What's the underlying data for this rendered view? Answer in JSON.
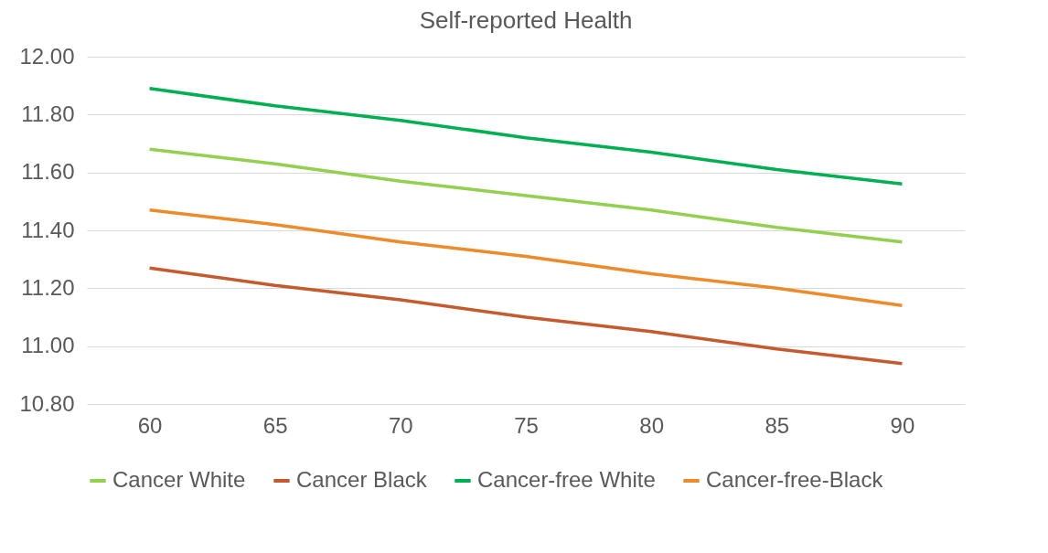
{
  "chart_data": {
    "type": "line",
    "title": "Self-reported Health",
    "categories": [
      "60",
      "65",
      "70",
      "75",
      "80",
      "85",
      "90"
    ],
    "series": [
      {
        "name": "Cancer White",
        "color": "#92d050",
        "values": [
          11.68,
          11.63,
          11.57,
          11.52,
          11.47,
          11.41,
          11.36
        ]
      },
      {
        "name": "Cancer Black",
        "color": "#c55a2e",
        "values": [
          11.27,
          11.21,
          11.16,
          11.1,
          11.05,
          10.99,
          10.94
        ]
      },
      {
        "name": "Cancer-free White",
        "color": "#00b050",
        "values": [
          11.89,
          11.83,
          11.78,
          11.72,
          11.67,
          11.61,
          11.56
        ]
      },
      {
        "name": "Cancer-free-Black",
        "color": "#ed8a2a",
        "values": [
          11.47,
          11.42,
          11.36,
          11.31,
          11.25,
          11.2,
          11.14
        ]
      }
    ],
    "ylim": [
      10.8,
      12.0
    ],
    "yticks": [
      {
        "value": 10.8,
        "label": "10.80"
      },
      {
        "value": 11.0,
        "label": "11.00"
      },
      {
        "value": 11.2,
        "label": "11.20"
      },
      {
        "value": 11.4,
        "label": "11.40"
      },
      {
        "value": 11.6,
        "label": "11.60"
      },
      {
        "value": 11.8,
        "label": "11.80"
      },
      {
        "value": 12.0,
        "label": "12.00"
      }
    ],
    "grid": "y",
    "legend": "bottom",
    "marker": "none",
    "line_style": "solid"
  }
}
